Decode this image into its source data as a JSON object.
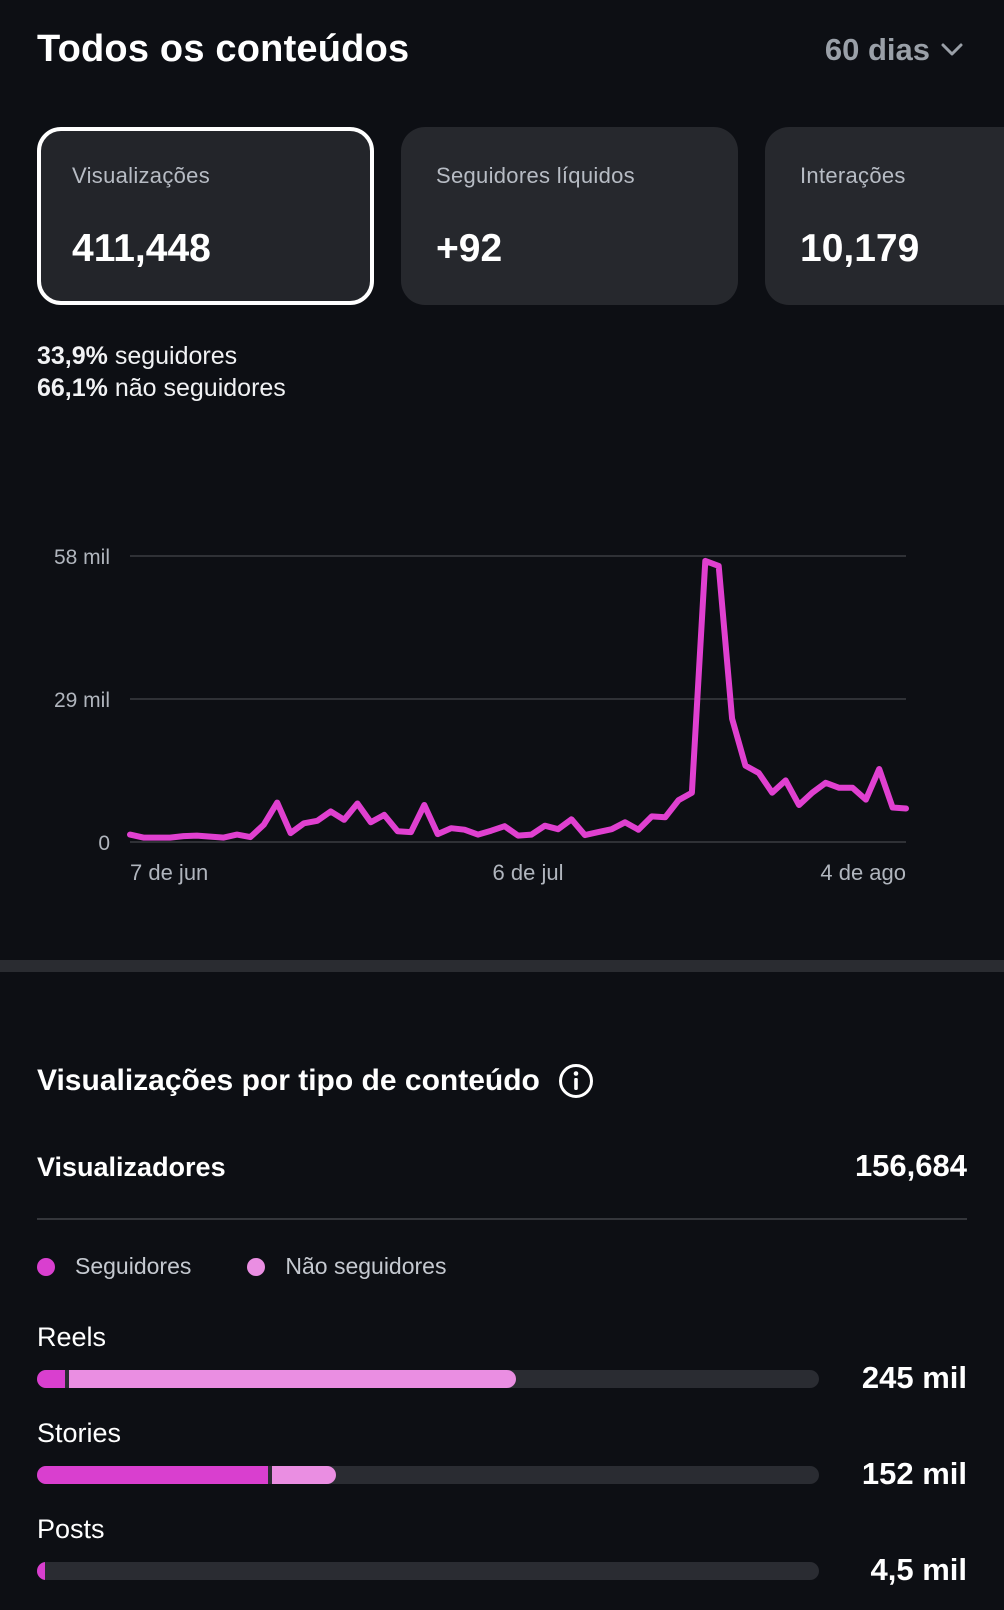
{
  "header": {
    "title": "Todos os conteúdos",
    "period": "60 dias",
    "period_icon": "chevron-down-icon"
  },
  "cards": [
    {
      "label": "Visualizações",
      "value": "411,448",
      "selected": true
    },
    {
      "label": "Seguidores líquidos",
      "value": "+92",
      "selected": false
    },
    {
      "label": "Interações",
      "value": "10,179",
      "selected": false
    }
  ],
  "audience_split": {
    "followers_pct": "33,9%",
    "followers_label": "seguidores",
    "non_followers_pct": "66,1%",
    "non_followers_label": "não seguidores"
  },
  "chart_data": {
    "type": "line",
    "title": "",
    "xlabel": "",
    "ylabel": "",
    "x_tick_labels": [
      "7 de jun",
      "6 de jul",
      "4 de ago"
    ],
    "y_tick_labels": [
      "58 mil",
      "29 mil",
      "0"
    ],
    "ylim": [
      0,
      58000
    ],
    "grid": "horizontal",
    "color": "#e040d0",
    "series": [
      {
        "values": [
          1500,
          900,
          900,
          900,
          1200,
          1300,
          1100,
          900,
          1500,
          1000,
          3500,
          8000,
          1800,
          3800,
          4300,
          6200,
          4500,
          7800,
          4000,
          5500,
          2200,
          2000,
          7500,
          1600,
          2800,
          2500,
          1500,
          2300,
          3200,
          1300,
          1500,
          3300,
          2600,
          4600,
          1400,
          2000,
          2600,
          4000,
          2500,
          5200,
          5000,
          8500,
          10000,
          57000,
          56000,
          25000,
          15500,
          14000,
          10000,
          12500,
          7500,
          10000,
          12000,
          11000,
          11000,
          8600,
          14800,
          7000,
          6800
        ]
      }
    ]
  },
  "breakdown": {
    "title": "Visualizações por tipo de conteúdo",
    "info_icon": "info-icon",
    "viewers_label": "Visualizadores",
    "viewers_value": "156,684",
    "legend": [
      {
        "label": "Seguidores",
        "color": "#d93fcf"
      },
      {
        "label": "Não seguidores",
        "color": "#ea8ee2"
      }
    ],
    "rows": [
      {
        "label": "Reels",
        "value": "245 mil",
        "followers_fraction": 0.036,
        "non_followers_fraction": 0.577
      },
      {
        "label": "Stories",
        "value": "152 mil",
        "followers_fraction": 0.295,
        "non_followers_fraction": 0.087
      },
      {
        "label": "Posts",
        "value": "4,5 mil",
        "followers_fraction": 0.01,
        "non_followers_fraction": 0.004
      }
    ]
  }
}
